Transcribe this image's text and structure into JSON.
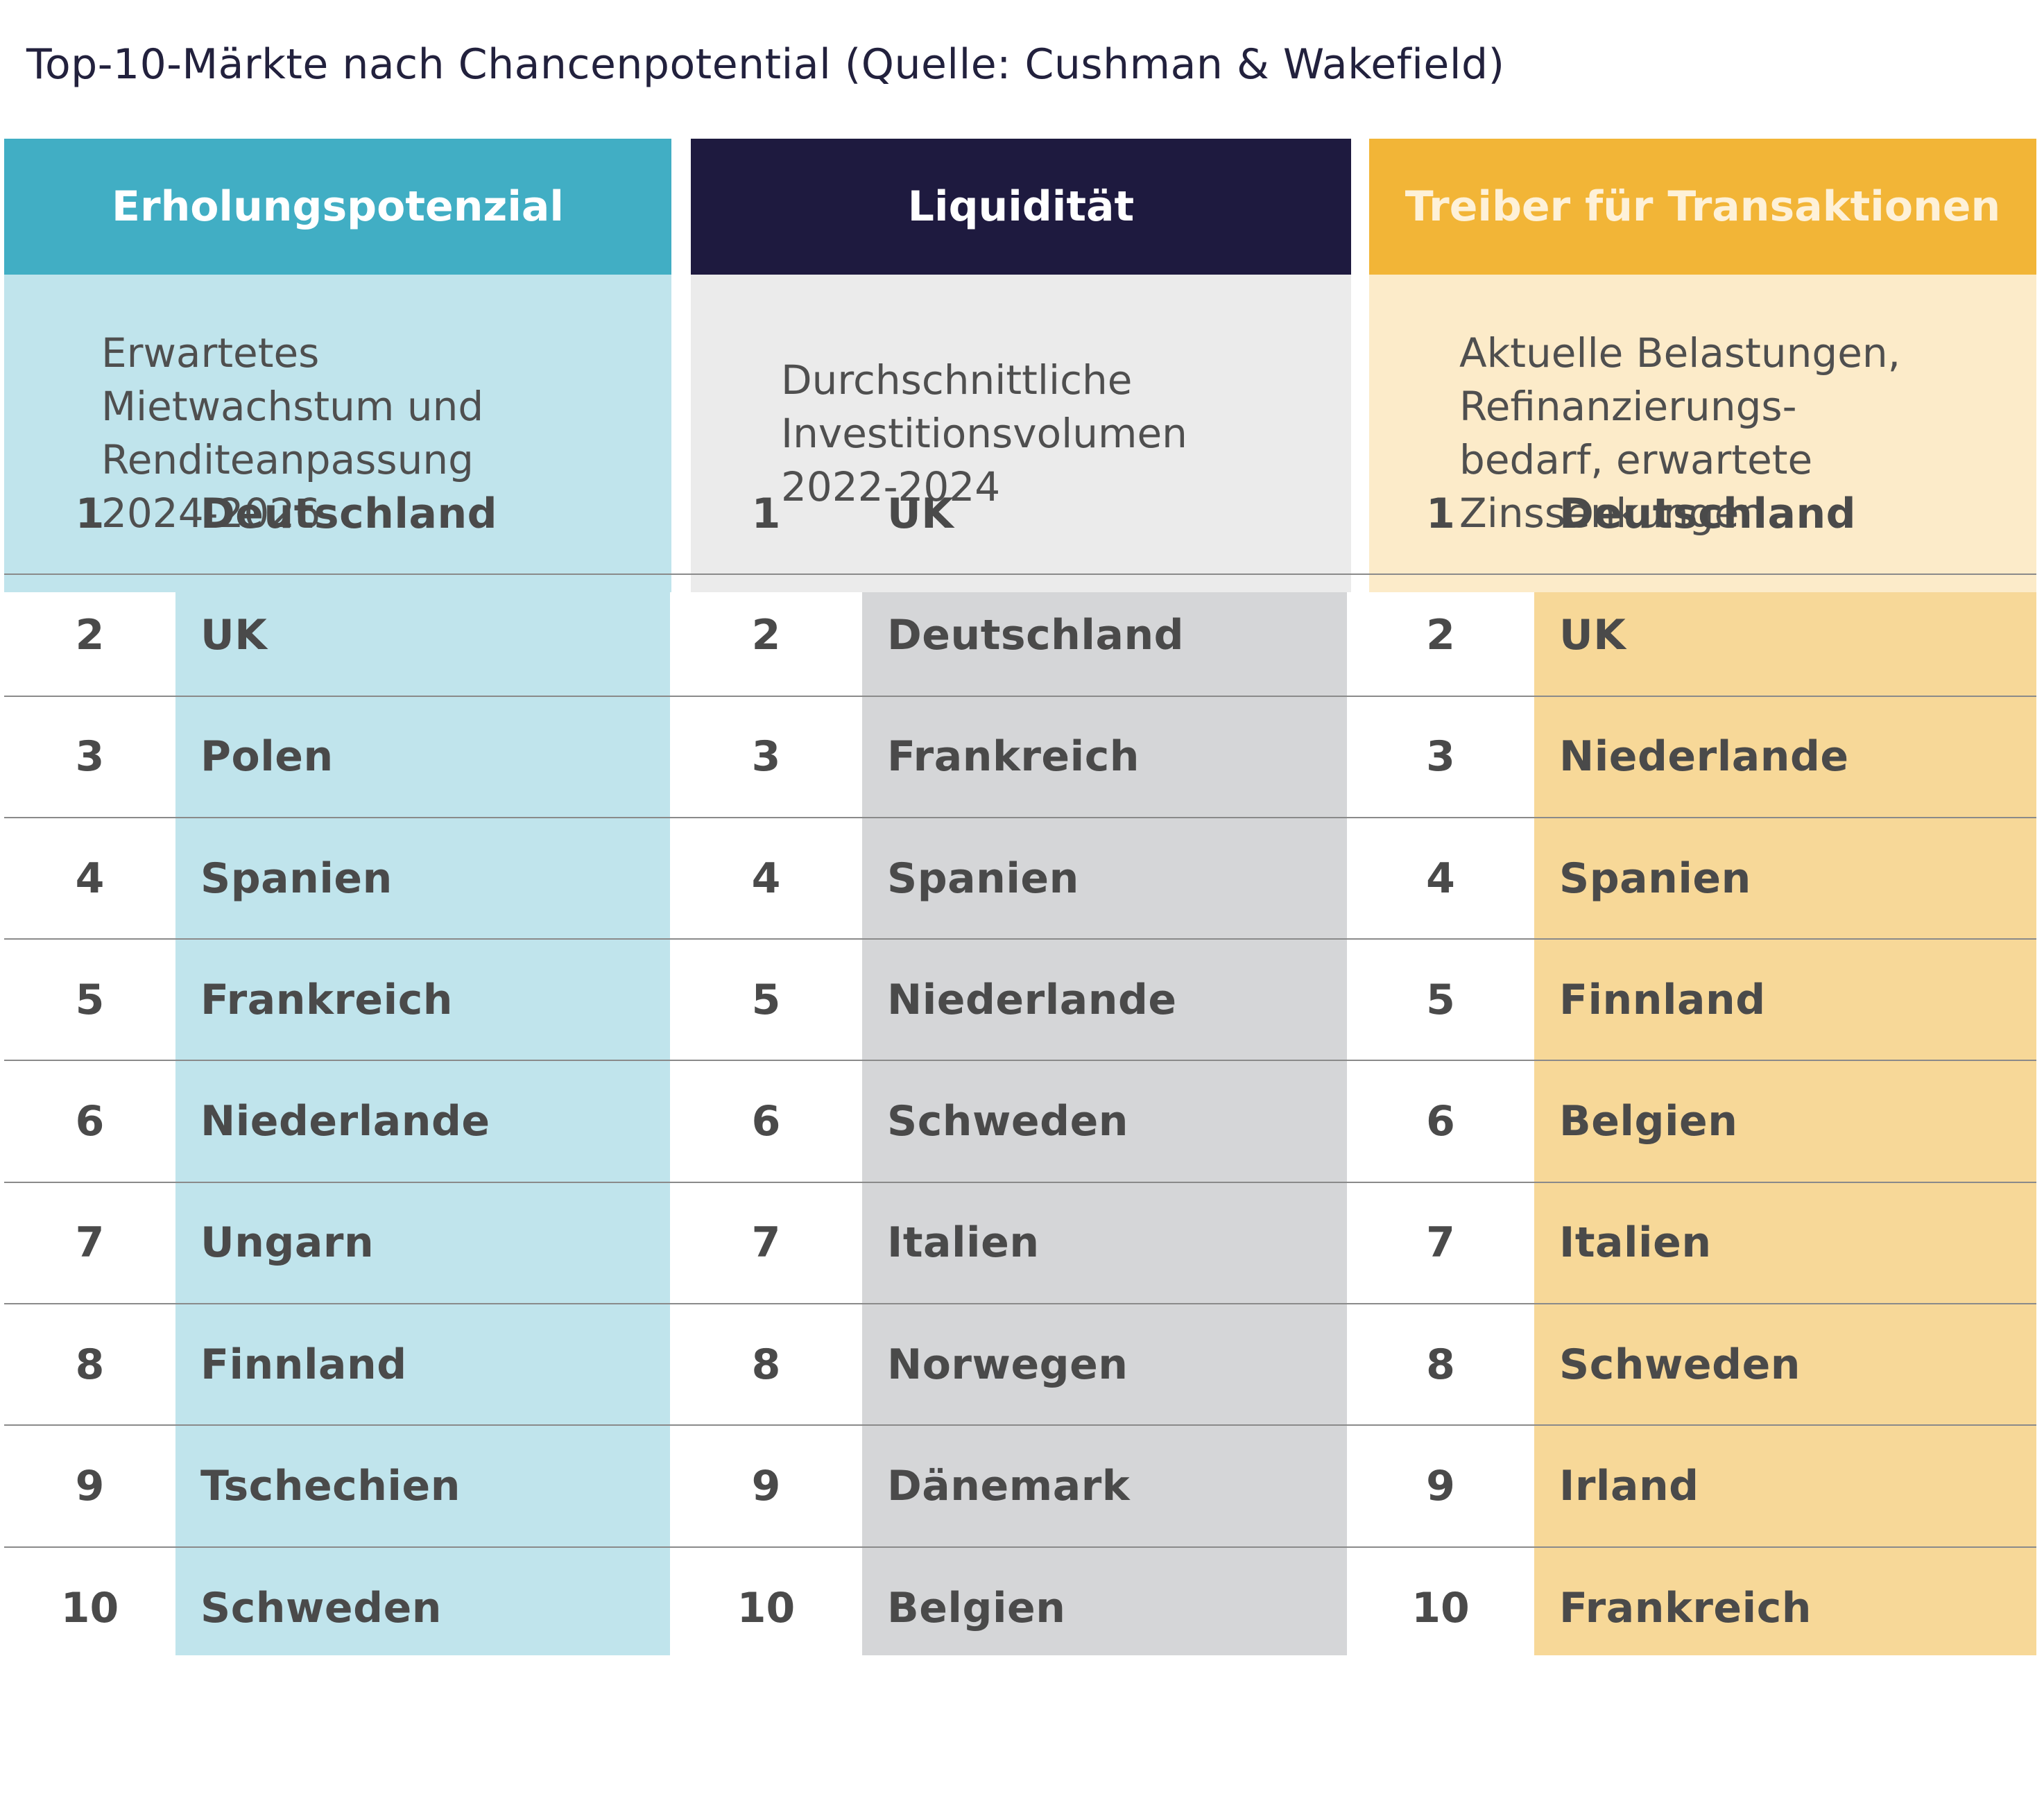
{
  "title": "Top-10-Märkte nach Chancenpotential (Quelle: Cushman & Wakefield)",
  "colors": {
    "col1_header": "#41aec4",
    "col1_sub": "#c0e4ec",
    "col1_band": "#c0e4ec",
    "col2_header": "#1e1a3f",
    "col2_sub": "#ebebeb",
    "col2_band": "#d5d6d8",
    "col3_header": "#f2b537",
    "col3_header_text": "#fef1d8",
    "col3_sub": "#fcebc9",
    "col3_band": "#f7d898"
  },
  "columns": [
    {
      "header": "Erholungspotenzial",
      "subtitle": "Erwartetes\nMietwachstum und\nRenditeanpassung\n2024-2026",
      "rows": [
        {
          "rank": "1",
          "country": "Deutschland"
        },
        {
          "rank": "2",
          "country": "UK"
        },
        {
          "rank": "3",
          "country": "Polen"
        },
        {
          "rank": "4",
          "country": "Spanien"
        },
        {
          "rank": "5",
          "country": "Frankreich"
        },
        {
          "rank": "6",
          "country": "Niederlande"
        },
        {
          "rank": "7",
          "country": "Ungarn"
        },
        {
          "rank": "8",
          "country": "Finnland"
        },
        {
          "rank": "9",
          "country": "Tschechien"
        },
        {
          "rank": "10",
          "country": "Schweden"
        }
      ]
    },
    {
      "header": "Liquidität",
      "subtitle": "Durchschnittliche\nInvestitionsvolumen\n2022-2024",
      "rows": [
        {
          "rank": "1",
          "country": "UK"
        },
        {
          "rank": "2",
          "country": "Deutschland"
        },
        {
          "rank": "3",
          "country": "Frankreich"
        },
        {
          "rank": "4",
          "country": "Spanien"
        },
        {
          "rank": "5",
          "country": "Niederlande"
        },
        {
          "rank": "6",
          "country": "Schweden"
        },
        {
          "rank": "7",
          "country": "Italien"
        },
        {
          "rank": "8",
          "country": "Norwegen"
        },
        {
          "rank": "9",
          "country": "Dänemark"
        },
        {
          "rank": "10",
          "country": "Belgien"
        }
      ]
    },
    {
      "header": "Treiber für Transaktionen",
      "subtitle": "Aktuelle Belastungen,\nRefinanzierungs-\nbedarf, erwartete\nZinssenkungen",
      "rows": [
        {
          "rank": "1",
          "country": "Deutschland"
        },
        {
          "rank": "2",
          "country": "UK"
        },
        {
          "rank": "3",
          "country": "Niederlande"
        },
        {
          "rank": "4",
          "country": "Spanien"
        },
        {
          "rank": "5",
          "country": "Finnland"
        },
        {
          "rank": "6",
          "country": "Belgien"
        },
        {
          "rank": "7",
          "country": "Italien"
        },
        {
          "rank": "8",
          "country": "Schweden"
        },
        {
          "rank": "9",
          "country": "Irland"
        },
        {
          "rank": "10",
          "country": "Frankreich"
        }
      ]
    }
  ]
}
